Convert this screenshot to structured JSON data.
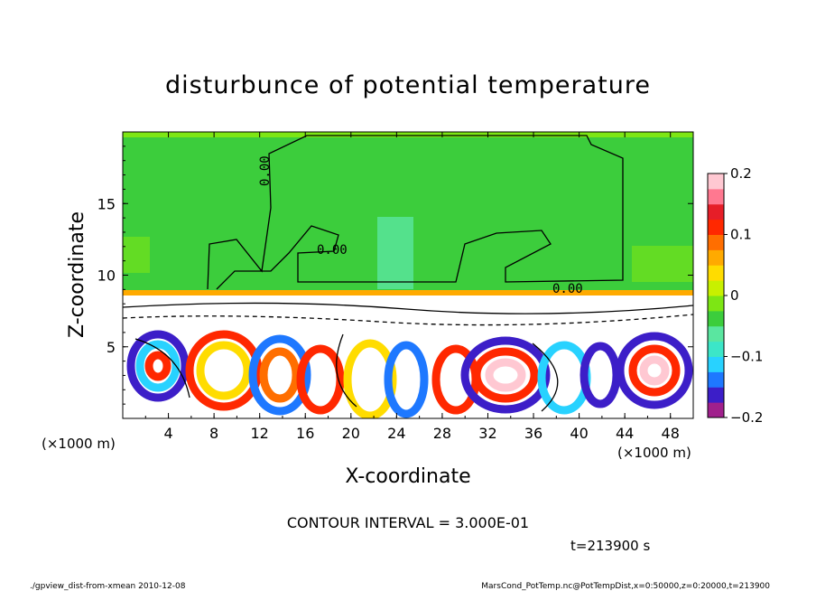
{
  "chart_data": {
    "type": "heatmap",
    "title": "disturbunce of potential temperature",
    "xlabel": "X-coordinate",
    "ylabel": "Z-coordinate",
    "x_unit": "(×1000 m)",
    "y_unit": "(×1000 m)",
    "xlim": [
      0,
      50
    ],
    "ylim": [
      0,
      20
    ],
    "x_ticks": [
      "4",
      "8",
      "12",
      "16",
      "20",
      "24",
      "28",
      "32",
      "36",
      "40",
      "44",
      "48"
    ],
    "y_ticks": [
      "5",
      "10",
      "15"
    ],
    "colorbar": {
      "range": [
        -0.2,
        0.2
      ],
      "tick_labels": [
        "0.2",
        "0.1",
        "0",
        "−0.1",
        "−0.2"
      ],
      "colors": [
        "#a0208c",
        "#3c1ec8",
        "#1e78ff",
        "#28d2ff",
        "#3ce6c8",
        "#5ae6a0",
        "#3ccd3c",
        "#7de614",
        "#c8f000",
        "#ffdc00",
        "#ffaa00",
        "#ff6e00",
        "#ff2800",
        "#e61e28",
        "#ff7890",
        "#ffc8d2"
      ]
    },
    "contour_labels": [
      "0.00",
      "0.00",
      "0.00"
    ],
    "contour_interval": "CONTOUR INTERVAL = 3.000E-01",
    "time_label": "t=213900 s"
  },
  "footer": {
    "left": "./gpview_dist-from-xmean  2010-12-08",
    "right": "MarsCond_PotTemp.nc@PotTempDist,x=0:50000,z=0:20000,t=213900"
  }
}
